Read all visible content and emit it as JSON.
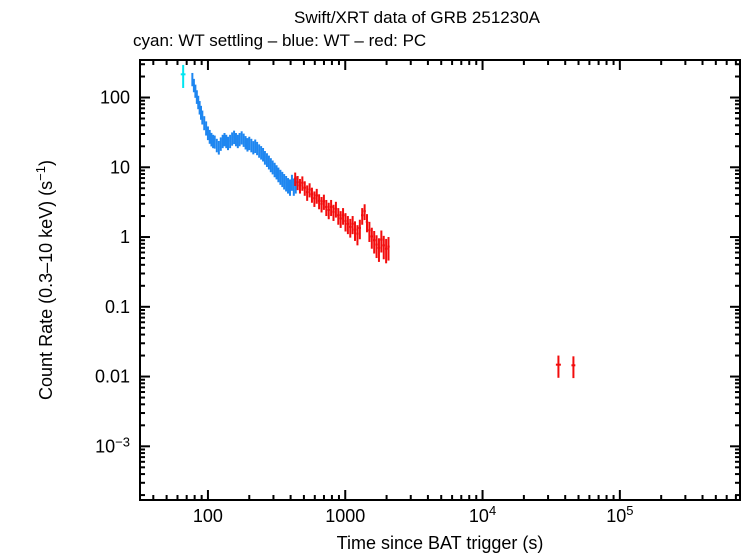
{
  "page": {
    "background": "#ffffff"
  },
  "chart_data": {
    "type": "scatter",
    "title": "Swift/XRT data of GRB 251230A",
    "subtitle": "cyan: WT settling – blue: WT – red: PC",
    "xlabel": "Time since BAT trigger (s)",
    "ylabel": {
      "full": "Count Rate (0.3–10 keV) (s−1)",
      "pre": "Count Rate (0.3–10 keV) (s",
      "sup": "−1",
      "post": ")"
    },
    "xscale": "log",
    "yscale": "log",
    "xlim": [
      32,
      750000
    ],
    "ylim": [
      0.00017,
      345
    ],
    "grid": false,
    "legend_position": "subtitle-line",
    "xticks": [
      {
        "v": 100,
        "label": "100",
        "sup": ""
      },
      {
        "v": 1000,
        "label": "1000",
        "sup": ""
      },
      {
        "v": 10000,
        "label": "10",
        "sup": "4"
      },
      {
        "v": 100000,
        "label": "10",
        "sup": "5"
      }
    ],
    "yticks": [
      {
        "v": 100,
        "label": "100",
        "sup": ""
      },
      {
        "v": 10,
        "label": "10",
        "sup": ""
      },
      {
        "v": 1,
        "label": "1",
        "sup": ""
      },
      {
        "v": 0.1,
        "label": "0.1",
        "sup": ""
      },
      {
        "v": 0.01,
        "label": "0.01",
        "sup": ""
      },
      {
        "v": 0.001,
        "label": "10",
        "sup": "−3"
      }
    ],
    "series": [
      {
        "name": "WT settling",
        "color": "#00E5F0",
        "terr_frac": 0.04,
        "points": [
          [
            66,
            215,
            78
          ]
        ]
      },
      {
        "name": "WT",
        "color": "#1E86F0",
        "terr_frac": 0.012,
        "points": [
          [
            77,
            185,
            40
          ],
          [
            79,
            152,
            33
          ],
          [
            81,
            126,
            27
          ],
          [
            83,
            104,
            23
          ],
          [
            85,
            87,
            19
          ],
          [
            87,
            73,
            16
          ],
          [
            89,
            62,
            14
          ],
          [
            91,
            53,
            12
          ],
          [
            94,
            44,
            10
          ],
          [
            97,
            37,
            8.5
          ],
          [
            100,
            31.5,
            7
          ],
          [
            103,
            28,
            6.3
          ],
          [
            106,
            25.5,
            5.6
          ],
          [
            109,
            24,
            5.2
          ],
          [
            112,
            23.5,
            5
          ],
          [
            116,
            21,
            4.6
          ],
          [
            120,
            19.5,
            4.3
          ],
          [
            124,
            22,
            4.8
          ],
          [
            128,
            24,
            5.2
          ],
          [
            132,
            25.5,
            5.5
          ],
          [
            136,
            24,
            5.2
          ],
          [
            140,
            22.5,
            4.9
          ],
          [
            145,
            24,
            5.2
          ],
          [
            150,
            26,
            5.6
          ],
          [
            155,
            27.5,
            6
          ],
          [
            160,
            25.5,
            5.5
          ],
          [
            165,
            24,
            5.2
          ],
          [
            170,
            25.5,
            5.5
          ],
          [
            176,
            27,
            5.8
          ],
          [
            182,
            25,
            5.4
          ],
          [
            188,
            23,
            5
          ],
          [
            194,
            21.5,
            4.7
          ],
          [
            200,
            22.5,
            4.9
          ],
          [
            207,
            21,
            4.6
          ],
          [
            214,
            19.5,
            4.2
          ],
          [
            221,
            20.5,
            4.5
          ],
          [
            228,
            19,
            4.1
          ],
          [
            236,
            17.5,
            3.8
          ],
          [
            244,
            16.5,
            3.6
          ],
          [
            252,
            15.5,
            3.4
          ],
          [
            260,
            14,
            3.1
          ],
          [
            269,
            13,
            2.9
          ],
          [
            278,
            12,
            2.7
          ],
          [
            287,
            11,
            2.5
          ],
          [
            296,
            10.2,
            2.3
          ],
          [
            306,
            9.4,
            2.2
          ],
          [
            316,
            8.7,
            2
          ],
          [
            326,
            8,
            1.9
          ],
          [
            337,
            7.4,
            1.8
          ],
          [
            348,
            6.9,
            1.7
          ],
          [
            359,
            6.4,
            1.6
          ],
          [
            371,
            6.0,
            1.5
          ],
          [
            383,
            5.6,
            1.4
          ],
          [
            396,
            5.3,
            1.4
          ],
          [
            409,
            6.2,
            1.6
          ],
          [
            422,
            5.4,
            1.5
          ],
          [
            436,
            5.8,
            1.6
          ]
        ]
      },
      {
        "name": "PC",
        "color": "#F20C0C",
        "terr_frac": 0.02,
        "points": [
          [
            432,
            6.9,
            1.5
          ],
          [
            450,
            6.1,
            1.4
          ],
          [
            468,
            5.5,
            1.3
          ],
          [
            487,
            6.0,
            1.4
          ],
          [
            507,
            5.1,
            1.2
          ],
          [
            528,
            4.4,
            1.1
          ],
          [
            550,
            4.8,
            1.1
          ],
          [
            572,
            4.1,
            1.0
          ],
          [
            596,
            3.6,
            0.9
          ],
          [
            620,
            3.95,
            0.95
          ],
          [
            645,
            3.3,
            0.8
          ],
          [
            672,
            3.0,
            0.75
          ],
          [
            699,
            3.25,
            0.8
          ],
          [
            728,
            2.7,
            0.7
          ],
          [
            758,
            2.45,
            0.65
          ],
          [
            789,
            2.7,
            0.7
          ],
          [
            821,
            2.3,
            0.6
          ],
          [
            855,
            2.55,
            0.65
          ],
          [
            890,
            2.05,
            0.55
          ],
          [
            926,
            1.85,
            0.5
          ],
          [
            964,
            2.05,
            0.55
          ],
          [
            1004,
            1.7,
            0.5
          ],
          [
            1045,
            1.55,
            0.45
          ],
          [
            1088,
            1.4,
            0.42
          ],
          [
            1132,
            1.55,
            0.45
          ],
          [
            1178,
            1.28,
            0.4
          ],
          [
            1227,
            1.12,
            0.36
          ],
          [
            1277,
            1.35,
            0.42
          ],
          [
            1329,
            2.05,
            0.55
          ],
          [
            1384,
            2.35,
            0.6
          ],
          [
            1440,
            1.65,
            0.48
          ],
          [
            1499,
            1.25,
            0.4
          ],
          [
            1561,
            1.02,
            0.34
          ],
          [
            1625,
            0.9,
            0.32
          ],
          [
            1691,
            0.78,
            0.28
          ],
          [
            1760,
            0.7,
            0.26
          ],
          [
            1832,
            0.92,
            0.32
          ],
          [
            1907,
            0.76,
            0.28
          ],
          [
            1985,
            0.68,
            0.26
          ],
          [
            2066,
            0.73,
            0.27
          ],
          [
            35700,
            0.0148,
            0.0052,
            1500
          ],
          [
            45900,
            0.0145,
            0.005,
            1500
          ]
        ]
      }
    ]
  }
}
